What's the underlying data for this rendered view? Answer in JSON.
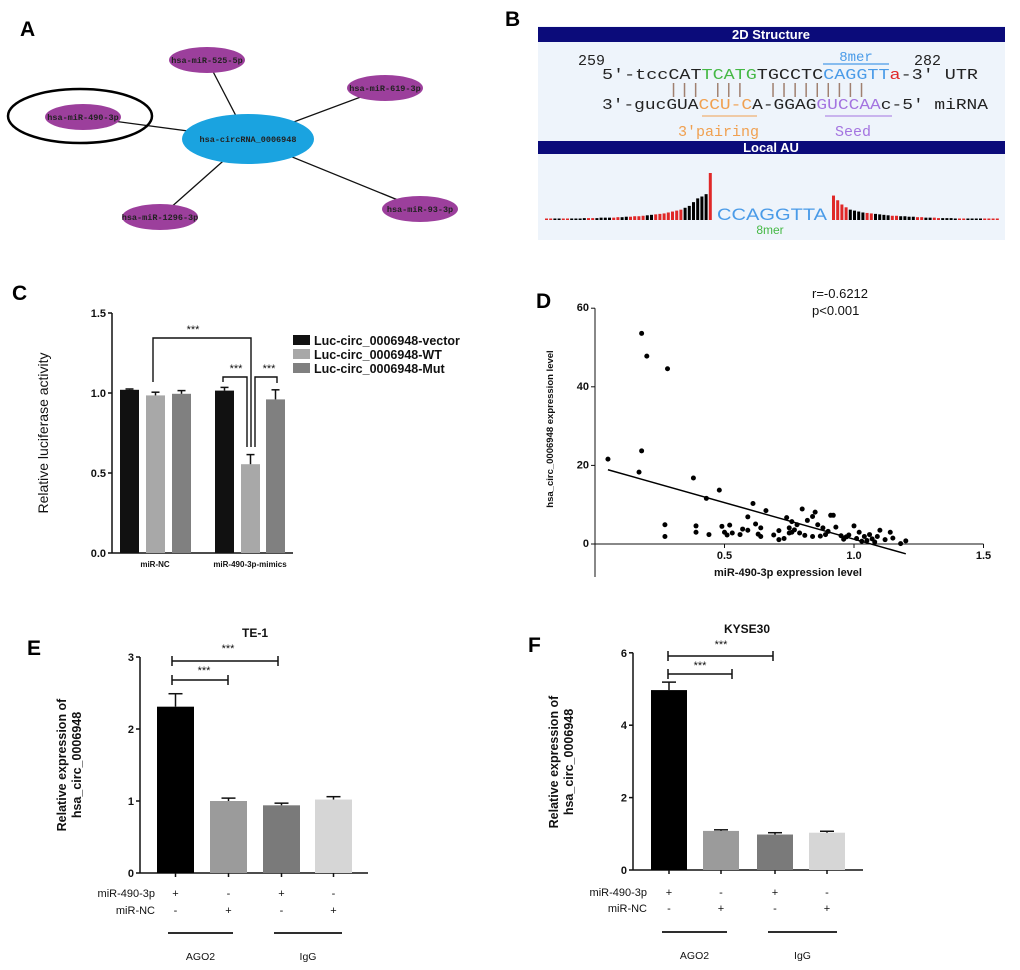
{
  "panel_labels": {
    "a": "A",
    "b": "B",
    "c": "C",
    "d": "D",
    "e": "E",
    "f": "F"
  },
  "network": {
    "center": "hsa-circRNA_0006948",
    "mirnas": [
      "hsa-miR-525-5p",
      "hsa-miR-619-3p",
      "hsa-miR-490-3p",
      "hsa-miR-1296-3p",
      "hsa-miR-93-3p"
    ],
    "highlighted": "hsa-miR-490-3p",
    "center_color": "#1aa3e0",
    "mirna_color": "#9c3f9c"
  },
  "structure": {
    "header": "2D Structure",
    "start_pos": "259",
    "end_pos": "282",
    "site_type": "8mer",
    "utr_segments": [
      "5'-tccCAT",
      "TCATG",
      "TGCCTC",
      "CAGGTT",
      "a",
      "-3' UTR"
    ],
    "pairing": "||| |||  |||||||||",
    "mirna_segments": [
      "3'-gucGUA",
      "CCU-C",
      "A-GGAG",
      "GUCCAA",
      "c-5' miRNA"
    ],
    "pairing_label": "3'pairing",
    "seed_label": "Seed",
    "local_au_header": "Local AU",
    "site_sequence": "CCAGGTTA",
    "site_sequence_type": "8mer",
    "colors": {
      "header": "#0b0b7a",
      "bg": "#eef4fb",
      "green": "#45b845",
      "blue": "#4a9be8",
      "red": "#e02828",
      "orange": "#f0a050",
      "purple": "#a474e0"
    }
  },
  "chart_data": [
    {
      "panel": "C",
      "type": "bar",
      "title": "",
      "categories": [
        "miR-NC",
        "miR-490-3p-mimics"
      ],
      "series": [
        {
          "name": "Luc-circ_0006948-vector",
          "color": "#111111",
          "values": [
            1.02,
            1.015
          ],
          "errors": [
            0.005,
            0.02
          ]
        },
        {
          "name": "Luc-circ_0006948-WT",
          "color": "#a8a8a8",
          "values": [
            0.985,
            0.555
          ],
          "errors": [
            0.02,
            0.06
          ]
        },
        {
          "name": "Luc-circ_0006948-Mut",
          "color": "#808080",
          "values": [
            0.995,
            0.96
          ],
          "errors": [
            0.02,
            0.06
          ]
        }
      ],
      "xlabel": "",
      "ylabel": "Relative luciferase activity",
      "ylim": [
        0,
        1.5
      ],
      "yticks": [
        0,
        0.5,
        1.0,
        1.5
      ],
      "ytick_labels": [
        "0.0",
        "0.5",
        "1.0",
        "1.5"
      ],
      "legend": "top-right",
      "significance": [
        {
          "label": "***",
          "compare": "miR-NC vector vs mimics WT"
        },
        {
          "label": "***",
          "compare": "mimics vector vs mimics WT"
        },
        {
          "label": "***",
          "compare": "mimics WT vs mimics Mut"
        }
      ]
    },
    {
      "panel": "D",
      "type": "scatter",
      "xlabel": "miR-490-3p expression level",
      "ylabel": "hsa_circ_0006948 expression level",
      "xlim": [
        0,
        1.5
      ],
      "ylim": [
        0,
        60
      ],
      "xticks": [
        0.5,
        1.0,
        1.5
      ],
      "xtick_labels": [
        "0.5",
        "1.0",
        "1.5"
      ],
      "yticks": [
        0,
        20,
        40,
        60
      ],
      "ytick_labels": [
        "0",
        "20",
        "40",
        "60"
      ],
      "annotation_r": "r=-0.6212",
      "annotation_p": "p<0.001",
      "fit_line": {
        "x": [
          0.05,
          1.2
        ],
        "y": [
          18.9,
          -2.5
        ]
      },
      "points": [
        [
          0.05,
          21.6
        ],
        [
          0.18,
          53.6
        ],
        [
          0.2,
          47.8
        ],
        [
          0.28,
          44.6
        ],
        [
          0.18,
          23.7
        ],
        [
          0.17,
          18.3
        ],
        [
          0.38,
          16.8
        ],
        [
          0.48,
          13.7
        ],
        [
          0.43,
          11.6
        ],
        [
          0.27,
          4.9
        ],
        [
          0.27,
          1.9
        ],
        [
          0.39,
          4.6
        ],
        [
          0.39,
          3.0
        ],
        [
          0.44,
          2.4
        ],
        [
          0.49,
          4.5
        ],
        [
          0.5,
          3.0
        ],
        [
          0.52,
          4.8
        ],
        [
          0.51,
          2.3
        ],
        [
          0.53,
          2.8
        ],
        [
          0.56,
          2.4
        ],
        [
          0.57,
          3.8
        ],
        [
          0.59,
          6.9
        ],
        [
          0.59,
          3.5
        ],
        [
          0.61,
          10.3
        ],
        [
          0.62,
          5.1
        ],
        [
          0.64,
          4.1
        ],
        [
          0.63,
          2.5
        ],
        [
          0.64,
          1.9
        ],
        [
          0.66,
          8.5
        ],
        [
          0.69,
          2.3
        ],
        [
          0.71,
          3.4
        ],
        [
          0.71,
          1.1
        ],
        [
          0.73,
          1.4
        ],
        [
          0.74,
          6.7
        ],
        [
          0.75,
          4.1
        ],
        [
          0.75,
          2.8
        ],
        [
          0.76,
          5.7
        ],
        [
          0.77,
          3.6
        ],
        [
          0.78,
          4.9
        ],
        [
          0.79,
          2.8
        ],
        [
          0.8,
          8.9
        ],
        [
          0.81,
          2.2
        ],
        [
          0.82,
          6.0
        ],
        [
          0.84,
          7.0
        ],
        [
          0.85,
          8.1
        ],
        [
          0.86,
          4.9
        ],
        [
          0.84,
          1.9
        ],
        [
          0.88,
          4.1
        ],
        [
          0.89,
          2.4
        ],
        [
          0.91,
          7.3
        ],
        [
          0.92,
          7.3
        ],
        [
          0.93,
          4.3
        ],
        [
          0.95,
          2.1
        ],
        [
          0.97,
          1.8
        ],
        [
          0.98,
          2.3
        ],
        [
          1.0,
          4.6
        ],
        [
          1.01,
          1.4
        ],
        [
          1.02,
          3.0
        ],
        [
          1.03,
          0.7
        ],
        [
          1.04,
          1.9
        ],
        [
          1.06,
          2.4
        ],
        [
          1.07,
          1.3
        ],
        [
          1.09,
          1.9
        ],
        [
          1.1,
          3.5
        ],
        [
          1.12,
          1.1
        ],
        [
          1.14,
          3.0
        ],
        [
          1.15,
          1.5
        ],
        [
          1.18,
          0.1
        ],
        [
          1.2,
          0.8
        ],
        [
          0.76,
          3.0
        ],
        [
          0.87,
          2.0
        ],
        [
          0.9,
          3.2
        ],
        [
          1.05,
          0.9
        ],
        [
          1.08,
          0.5
        ],
        [
          0.96,
          1.2
        ]
      ]
    },
    {
      "panel": "E",
      "type": "bar",
      "title": "TE-1",
      "ylabel": "Relative expression of\nhsa_circ_0006948",
      "ylabel_lines": [
        "Relative expression of",
        "hsa_circ_0006948"
      ],
      "ylim": [
        0,
        3
      ],
      "yticks": [
        0,
        1,
        2,
        3
      ],
      "ytick_labels": [
        "0",
        "1",
        "2",
        "3"
      ],
      "values": [
        2.31,
        1.0,
        0.94,
        1.02
      ],
      "errors": [
        0.18,
        0.04,
        0.03,
        0.04
      ],
      "colors": [
        "#000000",
        "#9b9b9b",
        "#7a7a7a",
        "#d6d6d6"
      ],
      "condition_rows": [
        {
          "label": "miR-490-3p",
          "marks": [
            "+",
            "-",
            "+",
            "-"
          ]
        },
        {
          "label": "miR-NC",
          "marks": [
            "-",
            "+",
            "-",
            "+"
          ]
        }
      ],
      "groups": [
        "AGO2",
        "IgG"
      ],
      "significance": [
        "***",
        "***"
      ]
    },
    {
      "panel": "F",
      "type": "bar",
      "title": "KYSE30",
      "ylabel_lines": [
        "Relative expression of",
        "hsa_circ_0006948"
      ],
      "ylim": [
        0,
        6
      ],
      "yticks": [
        0,
        2,
        4,
        6
      ],
      "ytick_labels": [
        "0",
        "2",
        "4",
        "6"
      ],
      "values": [
        4.97,
        1.08,
        0.98,
        1.03
      ],
      "errors": [
        0.22,
        0.03,
        0.05,
        0.04
      ],
      "colors": [
        "#000000",
        "#9b9b9b",
        "#7a7a7a",
        "#d6d6d6"
      ],
      "condition_rows": [
        {
          "label": "miR-490-3p",
          "marks": [
            "+",
            "-",
            "+",
            "-"
          ]
        },
        {
          "label": "miR-NC",
          "marks": [
            "-",
            "+",
            "-",
            "+"
          ]
        }
      ],
      "groups": [
        "AGO2",
        "IgG"
      ],
      "significance": [
        "***",
        "***"
      ]
    },
    {
      "panel": "B-local-AU",
      "type": "bar",
      "left_values": [
        0.03,
        0.03,
        0.03,
        0.03,
        0.03,
        0.03,
        0.03,
        0.03,
        0.03,
        0.04,
        0.04,
        0.04,
        0.04,
        0.05,
        0.05,
        0.05,
        0.05,
        0.06,
        0.06,
        0.07,
        0.07,
        0.08,
        0.08,
        0.09,
        0.1,
        0.11,
        0.12,
        0.13,
        0.14,
        0.16,
        0.18,
        0.2,
        0.22,
        0.26,
        0.3,
        0.38,
        0.46,
        0.5,
        0.55,
        1.0
      ],
      "left_colors": [
        "#e02828",
        "#e02828",
        "#000000",
        "#000000",
        "#e02828",
        "#e02828",
        "#000000",
        "#000000",
        "#000000",
        "#000000",
        "#e02828",
        "#e02828",
        "#000000",
        "#000000",
        "#000000",
        "#000000",
        "#e02828",
        "#e02828",
        "#000000",
        "#000000",
        "#e02828",
        "#e02828",
        "#e02828",
        "#e02828",
        "#000000",
        "#000000",
        "#e02828",
        "#e02828",
        "#e02828",
        "#e02828",
        "#e02828",
        "#e02828",
        "#e02828",
        "#000000",
        "#000000",
        "#000000",
        "#000000",
        "#000000",
        "#000000",
        "#e02828"
      ],
      "right_values": [
        0.52,
        0.42,
        0.33,
        0.27,
        0.22,
        0.2,
        0.18,
        0.16,
        0.15,
        0.14,
        0.13,
        0.12,
        0.11,
        0.1,
        0.09,
        0.09,
        0.08,
        0.08,
        0.07,
        0.07,
        0.06,
        0.06,
        0.05,
        0.05,
        0.05,
        0.04,
        0.04,
        0.04,
        0.04,
        0.03,
        0.03,
        0.03,
        0.03,
        0.03,
        0.03,
        0.03,
        0.03,
        0.03,
        0.03,
        0.03
      ],
      "right_colors": [
        "#e02828",
        "#e02828",
        "#e02828",
        "#e02828",
        "#000000",
        "#000000",
        "#000000",
        "#000000",
        "#e02828",
        "#e02828",
        "#000000",
        "#000000",
        "#000000",
        "#000000",
        "#e02828",
        "#e02828",
        "#000000",
        "#000000",
        "#000000",
        "#000000",
        "#e02828",
        "#e02828",
        "#000000",
        "#000000",
        "#e02828",
        "#e02828",
        "#000000",
        "#000000",
        "#000000",
        "#000000",
        "#e02828",
        "#e02828",
        "#000000",
        "#000000",
        "#000000",
        "#000000",
        "#e02828",
        "#e02828",
        "#e02828",
        "#e02828"
      ]
    }
  ]
}
